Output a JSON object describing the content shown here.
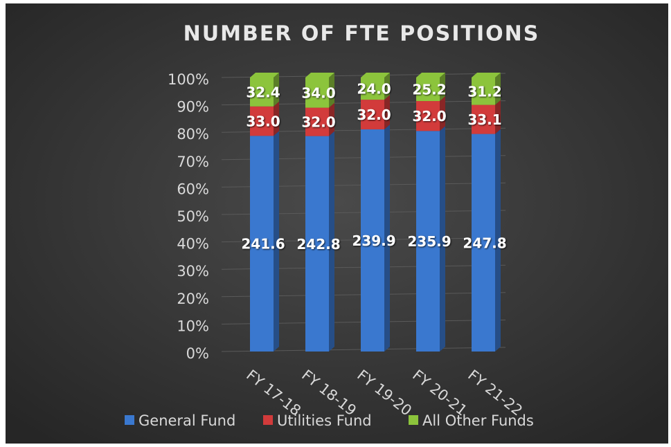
{
  "chart_data": {
    "type": "bar",
    "stacking": "percent",
    "title": "NUMBER OF FTE POSITIONS",
    "categories": [
      "FY 17-18",
      "FY 18-19",
      "FY 19-20",
      "FY 20-21",
      "FY 21-22"
    ],
    "series": [
      {
        "name": "General Fund",
        "color": "#3a78cf",
        "values": [
          241.6,
          242.8,
          239.9,
          235.9,
          247.8
        ],
        "value_labels": [
          "241.6",
          "242.8",
          "239.9",
          "235.9",
          "247.8"
        ]
      },
      {
        "name": "Utilities Fund",
        "color": "#d23b3b",
        "values": [
          33.0,
          32.0,
          32.0,
          32.0,
          33.1
        ],
        "value_labels": [
          "33.0",
          "32.0",
          "32.0",
          "32.0",
          "33.1"
        ]
      },
      {
        "name": "All Other Funds",
        "color": "#8cc43c",
        "values": [
          32.4,
          34.0,
          24.0,
          25.2,
          31.2
        ],
        "value_labels": [
          "32.4",
          "34.0",
          "24.0",
          "25.2",
          "31.2"
        ]
      }
    ],
    "ylim": [
      0,
      100
    ],
    "yticks": [
      {
        "value": 0,
        "label": "0%"
      },
      {
        "value": 10,
        "label": "10%"
      },
      {
        "value": 20,
        "label": "20%"
      },
      {
        "value": 30,
        "label": "30%"
      },
      {
        "value": 40,
        "label": "40%"
      },
      {
        "value": 50,
        "label": "50%"
      },
      {
        "value": 60,
        "label": "60%"
      },
      {
        "value": 70,
        "label": "70%"
      },
      {
        "value": 80,
        "label": "80%"
      },
      {
        "value": 90,
        "label": "90%"
      },
      {
        "value": 100,
        "label": "100%"
      }
    ],
    "grid": true,
    "legend": "bottom"
  }
}
